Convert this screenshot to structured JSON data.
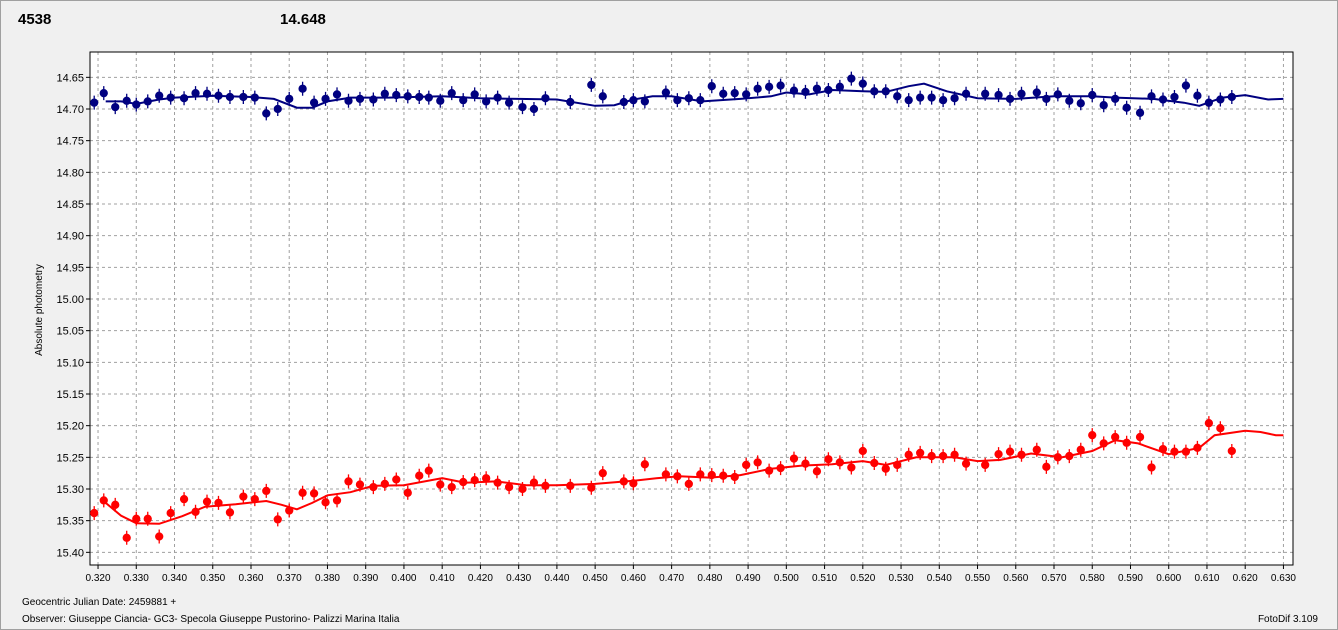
{
  "chart_data": {
    "type": "scatter",
    "readouts": [
      {
        "value": 4538,
        "color": "#ff0000"
      },
      {
        "value": 14.648,
        "color": "#000080"
      }
    ],
    "y_label": "Absolute photometry",
    "x_label": "Geocentric Julian Date: 2459881 +",
    "observer": "Observer: Giuseppe Ciancia- GC3- Specola Giuseppe Pustorino- Palizzi Marina Italia",
    "software": "FotoDif 3.109",
    "grid": true,
    "xlim": [
      0.3179,
      0.6325
    ],
    "ylim": [
      15.42,
      14.61
    ],
    "xticks": [
      {
        "value": 0.32,
        "label": "0.320"
      },
      {
        "value": 0.33,
        "label": "0.330"
      },
      {
        "value": 0.34,
        "label": "0.340"
      },
      {
        "value": 0.35,
        "label": "0.350"
      },
      {
        "value": 0.36,
        "label": "0.360"
      },
      {
        "value": 0.37,
        "label": "0.370"
      },
      {
        "value": 0.38,
        "label": "0.380"
      },
      {
        "value": 0.39,
        "label": "0.390"
      },
      {
        "value": 0.4,
        "label": "0.400"
      },
      {
        "value": 0.41,
        "label": "0.410"
      },
      {
        "value": 0.42,
        "label": "0.420"
      },
      {
        "value": 0.43,
        "label": "0.430"
      },
      {
        "value": 0.44,
        "label": "0.440"
      },
      {
        "value": 0.45,
        "label": "0.450"
      },
      {
        "value": 0.46,
        "label": "0.460"
      },
      {
        "value": 0.47,
        "label": "0.470"
      },
      {
        "value": 0.48,
        "label": "0.480"
      },
      {
        "value": 0.49,
        "label": "0.490"
      },
      {
        "value": 0.5,
        "label": "0.500"
      },
      {
        "value": 0.51,
        "label": "0.510"
      },
      {
        "value": 0.52,
        "label": "0.520"
      },
      {
        "value": 0.53,
        "label": "0.530"
      },
      {
        "value": 0.54,
        "label": "0.540"
      },
      {
        "value": 0.55,
        "label": "0.550"
      },
      {
        "value": 0.56,
        "label": "0.560"
      },
      {
        "value": 0.57,
        "label": "0.570"
      },
      {
        "value": 0.58,
        "label": "0.580"
      },
      {
        "value": 0.59,
        "label": "0.590"
      },
      {
        "value": 0.6,
        "label": "0.600"
      },
      {
        "value": 0.61,
        "label": "0.610"
      },
      {
        "value": 0.62,
        "label": "0.620"
      },
      {
        "value": 0.63,
        "label": "0.630"
      }
    ],
    "yticks": [
      14.65,
      {
        "value": 14.7,
        "label": "14.70"
      },
      14.75,
      {
        "value": 14.8,
        "label": "14.80"
      },
      14.85,
      {
        "value": 14.9,
        "label": "14.90"
      },
      14.95,
      {
        "value": 15,
        "label": "15.00"
      },
      15.05,
      {
        "value": 15.1,
        "label": "15.10"
      },
      15.15,
      {
        "value": 15.2,
        "label": "15.20"
      },
      15.25,
      {
        "value": 15.3,
        "label": "15.30"
      },
      15.35,
      {
        "value": 15.4,
        "label": "15.40"
      }
    ],
    "x": [
      0.319,
      0.3215,
      0.3245,
      0.3275,
      0.33,
      0.333,
      0.336,
      0.339,
      0.3425,
      0.3455,
      0.3485,
      0.3515,
      0.3545,
      0.358,
      0.361,
      0.364,
      0.367,
      0.37,
      0.3735,
      0.3765,
      0.3795,
      0.3825,
      0.3855,
      0.3885,
      0.392,
      0.395,
      0.398,
      0.401,
      0.404,
      0.4065,
      0.4095,
      0.4125,
      0.4155,
      0.4185,
      0.4215,
      0.4245,
      0.4275,
      0.431,
      0.434,
      0.437,
      0.4435,
      0.449,
      0.452,
      0.4575,
      0.46,
      0.463,
      0.4685,
      0.4715,
      0.4745,
      0.4775,
      0.4805,
      0.4835,
      0.4865,
      0.4895,
      0.4925,
      0.4955,
      0.4985,
      0.502,
      0.505,
      0.508,
      0.511,
      0.514,
      0.517,
      0.52,
      0.523,
      0.526,
      0.529,
      0.532,
      0.535,
      0.538,
      0.541,
      0.544,
      0.547,
      0.552,
      0.5555,
      0.5585,
      0.5615,
      0.5655,
      0.568,
      0.571,
      0.574,
      0.577,
      0.58,
      0.583,
      0.586,
      0.589,
      0.5925,
      0.5955,
      0.5985,
      0.6015,
      0.6045,
      0.6075,
      0.6105,
      0.6135,
      0.6165
    ],
    "series": [
      {
        "color": "#ff0000",
        "values": [
          15.338,
          15.318,
          15.325,
          15.377,
          15.347,
          15.347,
          15.375,
          15.338,
          15.316,
          15.336,
          15.32,
          15.322,
          15.337,
          15.312,
          15.316,
          15.303,
          15.348,
          15.334,
          15.306,
          15.307,
          15.321,
          15.318,
          15.288,
          15.293,
          15.297,
          15.292,
          15.285,
          15.306,
          15.279,
          15.271,
          15.293,
          15.297,
          15.289,
          15.286,
          15.283,
          15.29,
          15.297,
          15.3,
          15.29,
          15.295,
          15.295,
          15.298,
          15.275,
          15.288,
          15.291,
          15.261,
          15.277,
          15.28,
          15.292,
          15.277,
          15.278,
          15.279,
          15.281,
          15.262,
          15.258,
          15.271,
          15.267,
          15.252,
          15.26,
          15.272,
          15.253,
          15.258,
          15.266,
          15.24,
          15.259,
          15.268,
          15.262,
          15.246,
          15.243,
          15.248,
          15.248,
          15.246,
          15.26,
          15.262,
          15.245,
          15.241,
          15.246,
          15.238,
          15.265,
          15.25,
          15.248,
          15.238,
          15.215,
          15.228,
          15.218,
          15.227,
          15.218,
          15.266,
          15.237,
          15.241,
          15.241,
          15.235,
          15.196,
          15.204,
          15.24
        ]
      },
      {
        "color": "#000080",
        "values": [
          14.69,
          14.675,
          14.697,
          14.687,
          14.693,
          14.688,
          14.679,
          14.682,
          14.683,
          14.675,
          14.676,
          14.679,
          14.681,
          14.681,
          14.682,
          14.707,
          14.7,
          14.684,
          14.668,
          14.69,
          14.684,
          14.677,
          14.687,
          14.684,
          14.685,
          14.676,
          14.678,
          14.68,
          14.681,
          14.682,
          14.687,
          14.675,
          14.686,
          14.677,
          14.688,
          14.682,
          14.69,
          14.697,
          14.7,
          14.683,
          14.689,
          14.662,
          14.68,
          14.689,
          14.686,
          14.688,
          14.674,
          14.686,
          14.683,
          14.686,
          14.664,
          14.676,
          14.675,
          14.677,
          14.668,
          14.665,
          14.663,
          14.671,
          14.673,
          14.668,
          14.67,
          14.665,
          14.652,
          14.66,
          14.672,
          14.672,
          14.68,
          14.686,
          14.682,
          14.682,
          14.686,
          14.683,
          14.676,
          14.676,
          14.678,
          14.684,
          14.676,
          14.674,
          14.684,
          14.677,
          14.687,
          14.691,
          14.678,
          14.694,
          14.684,
          14.698,
          14.706,
          14.68,
          14.685,
          14.681,
          14.663,
          14.679,
          14.69,
          14.685,
          14.681
        ]
      }
    ],
    "fits": [
      {
        "color": "#ff0000",
        "x": [
          0.322,
          0.326,
          0.33,
          0.336,
          0.342,
          0.348,
          0.356,
          0.364,
          0.368,
          0.372,
          0.376,
          0.38,
          0.386,
          0.392,
          0.4,
          0.41,
          0.416,
          0.424,
          0.432,
          0.44,
          0.45,
          0.46,
          0.466,
          0.472,
          0.48,
          0.488,
          0.496,
          0.504,
          0.512,
          0.52,
          0.526,
          0.534,
          0.544,
          0.55,
          0.556,
          0.564,
          0.572,
          0.58,
          0.586,
          0.592,
          0.6,
          0.608,
          0.612,
          0.62,
          0.624,
          0.628,
          0.63
        ],
        "values": [
          15.322,
          15.342,
          15.354,
          15.355,
          15.343,
          15.328,
          15.324,
          15.319,
          15.325,
          15.332,
          15.322,
          15.31,
          15.305,
          15.295,
          15.294,
          15.283,
          15.29,
          15.288,
          15.294,
          15.294,
          15.292,
          15.287,
          15.283,
          15.28,
          15.282,
          15.278,
          15.268,
          15.263,
          15.261,
          15.256,
          15.262,
          15.25,
          15.25,
          15.256,
          15.254,
          15.244,
          15.25,
          15.24,
          15.223,
          15.228,
          15.245,
          15.235,
          15.215,
          15.208,
          15.21,
          15.215,
          15.215
        ]
      },
      {
        "color": "#000080",
        "x": [
          0.322,
          0.326,
          0.33,
          0.336,
          0.34,
          0.35,
          0.36,
          0.366,
          0.372,
          0.376,
          0.38,
          0.386,
          0.396,
          0.41,
          0.42,
          0.43,
          0.44,
          0.45,
          0.455,
          0.46,
          0.465,
          0.47,
          0.478,
          0.488,
          0.496,
          0.5,
          0.506,
          0.512,
          0.52,
          0.526,
          0.532,
          0.536,
          0.542,
          0.55,
          0.56,
          0.57,
          0.58,
          0.586,
          0.596,
          0.604,
          0.608,
          0.614,
          0.62,
          0.626,
          0.63
        ],
        "values": [
          14.688,
          14.688,
          14.692,
          14.685,
          14.682,
          14.679,
          14.681,
          14.684,
          14.698,
          14.698,
          14.688,
          14.682,
          14.682,
          14.68,
          14.683,
          14.684,
          14.685,
          14.695,
          14.694,
          14.685,
          14.68,
          14.68,
          14.688,
          14.684,
          14.68,
          14.674,
          14.677,
          14.67,
          14.672,
          14.673,
          14.664,
          14.66,
          14.672,
          14.683,
          14.684,
          14.68,
          14.68,
          14.682,
          14.684,
          14.69,
          14.695,
          14.682,
          14.678,
          14.685,
          14.684
        ]
      }
    ]
  }
}
